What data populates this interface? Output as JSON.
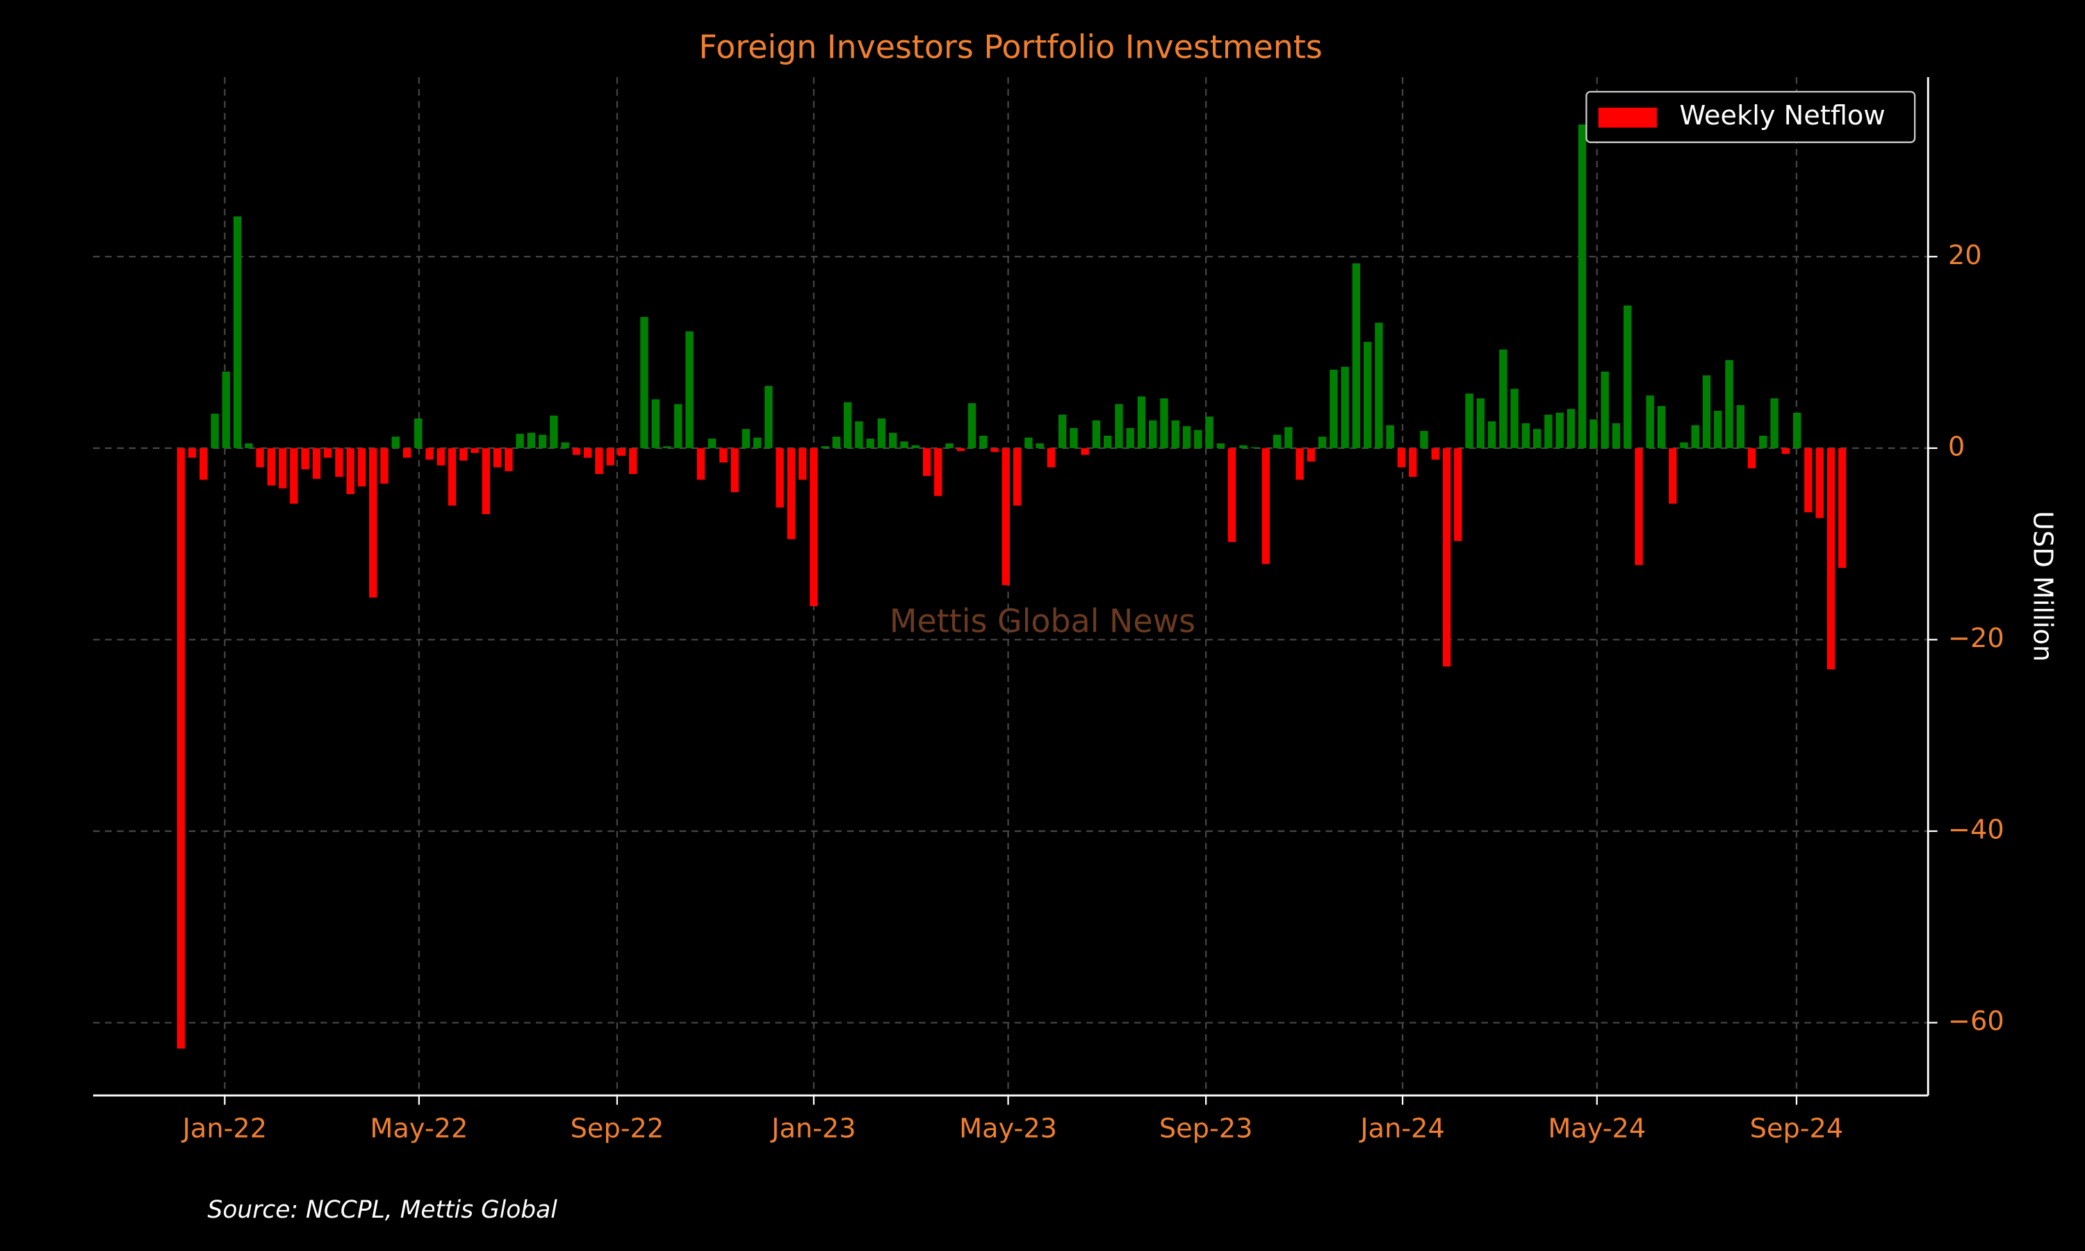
{
  "chart_data": {
    "type": "bar",
    "title": "Foreign Investors Portfolio Investments",
    "y_label": "USD Million",
    "watermark": "Mettis Global News",
    "source": "Source: NCCPL, Mettis Global",
    "categories": [
      null,
      null,
      null,
      null,
      null,
      null,
      null,
      null,
      null,
      null,
      null,
      null,
      null,
      null,
      null,
      null,
      null,
      null,
      null,
      null,
      null,
      null,
      null,
      null,
      null,
      null,
      null,
      null,
      null,
      null,
      null,
      null,
      null,
      null,
      null,
      null,
      null,
      null,
      null,
      null,
      null,
      null,
      null,
      null,
      null,
      null,
      null,
      null,
      null,
      null,
      null,
      null,
      null,
      null,
      null,
      null,
      null,
      null,
      null,
      null,
      null,
      null,
      null,
      null,
      null,
      null,
      null,
      null,
      null,
      null,
      null,
      null,
      null,
      null,
      null,
      null,
      null,
      null,
      null,
      null,
      null,
      null,
      null,
      null,
      null,
      null,
      null,
      null,
      null,
      null,
      null,
      null,
      null,
      null,
      null,
      null,
      null,
      null,
      null,
      null,
      null,
      null,
      null,
      null,
      null,
      null,
      null,
      null,
      null,
      null,
      null,
      null,
      null,
      null,
      null,
      null,
      null,
      null,
      null,
      null,
      null,
      null,
      null,
      null,
      null,
      null,
      null,
      null,
      null,
      null,
      null,
      null,
      null,
      null,
      null,
      null,
      null,
      null,
      null,
      null,
      null,
      null,
      null,
      null,
      null,
      null,
      null,
      null
    ],
    "series": [
      {
        "name": "Weekly Netflow",
        "color": "#ff0000",
        "values": [
          -62.7,
          -1,
          -3.3,
          3.6,
          8,
          24.2,
          0.5,
          -2,
          -3.9,
          -4.2,
          -5.8,
          -2.2,
          -3.2,
          -1,
          -3,
          -4.8,
          -4,
          -15.6,
          -3.7,
          1.2,
          -1,
          3.1,
          -1.2,
          -1.8,
          -6,
          -1.3,
          -0.5,
          -6.9,
          -2,
          -2.4,
          1.5,
          1.6,
          1.4,
          3.4,
          0.6,
          -0.7,
          -1,
          -2.7,
          -1.8,
          -0.8,
          -2.7,
          13.7,
          5.1,
          0.2,
          4.6,
          12.2,
          -3.3,
          1,
          -1.5,
          -4.6,
          2,
          1.1,
          6.5,
          -6.2,
          -9.5,
          -3.3,
          -16.5,
          0.2,
          1.2,
          4.8,
          2.8,
          1,
          3.1,
          1.6,
          0.7,
          0.3,
          -2.9,
          -5,
          0.5,
          -0.3,
          4.7,
          1.3,
          -0.4,
          -14.3,
          -6,
          1.1,
          0.5,
          -2,
          3.5,
          2.1,
          -0.7,
          2.9,
          1.3,
          4.6,
          2.1,
          5.4,
          2.9,
          5.2,
          2.9,
          2.3,
          1.9,
          3.3,
          0.5,
          -9.8,
          0.3,
          0.1,
          -12.1,
          1.4,
          2.2,
          -3.3,
          -1.4,
          1.2,
          8.2,
          8.5,
          19.3,
          11.1,
          13.1,
          2.4,
          -2,
          -3,
          1.8,
          -1.2,
          -22.8,
          -9.7,
          5.7,
          5.2,
          2.8,
          10.3,
          6.2,
          2.6,
          2,
          3.5,
          3.7,
          4.1,
          33.8,
          3,
          8,
          2.6,
          14.9,
          -12.2,
          5.5,
          4.4,
          -5.8,
          0.6,
          2.4,
          7.6,
          3.9,
          9.2,
          4.5,
          -2.1,
          1.3,
          5.2,
          -0.6,
          3.7,
          -6.7,
          -7.3,
          -23.1,
          -12.5
        ]
      }
    ],
    "positive_color": "#008000",
    "xlim": [
      -7.77,
      154.6
    ],
    "xticks": [
      {
        "value": 3.88,
        "label": "Jan-22"
      },
      {
        "value": 21.07,
        "label": "May-22"
      },
      {
        "value": 38.6,
        "label": "Sep-22"
      },
      {
        "value": 56.0,
        "label": "Jan-23"
      },
      {
        "value": 73.2,
        "label": "May-23"
      },
      {
        "value": 90.7,
        "label": "Sep-23"
      },
      {
        "value": 108.1,
        "label": "Jan-24"
      },
      {
        "value": 125.3,
        "label": "May-24"
      },
      {
        "value": 142.96,
        "label": "Sep-24"
      }
    ],
    "ylim": [
      -67.6,
      38.75
    ],
    "yticks": [
      {
        "value": -60,
        "label": "−60"
      },
      {
        "value": -40,
        "label": "−40"
      },
      {
        "value": -20,
        "label": "−20"
      },
      0,
      20
    ],
    "grid": true,
    "legend": "upper right"
  }
}
